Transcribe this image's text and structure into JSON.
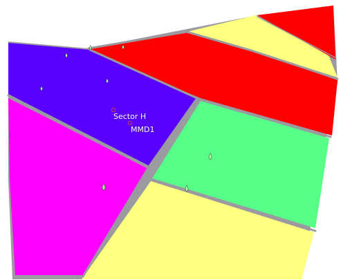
{
  "map": {
    "colors": {
      "background": "#ffffff",
      "parcel_red": "#ff0000",
      "parcel_yellow": "#ffff80",
      "parcel_blue": "#5a00ff",
      "parcel_magenta": "#ff00ff",
      "parcel_green": "#55ff88",
      "road_gray": "#9a9aa0",
      "marker_fill": "#a8ff9a",
      "point_stroke": "#c0306a"
    },
    "labels": {
      "sector": "Sector H",
      "mmd": "MMD1"
    },
    "markers": [
      {
        "kind": "drop-marker-icon",
        "color": "#a8ff9a"
      },
      {
        "kind": "drop-marker-icon",
        "color": "#a8ff9a"
      },
      {
        "kind": "drop-marker-icon",
        "color": "#a8ff9a"
      },
      {
        "kind": "drop-marker-icon",
        "color": "#a8ff9a"
      },
      {
        "kind": "drop-marker-icon",
        "color": "#a8ff9a"
      },
      {
        "kind": "drop-marker-icon",
        "color": "#a8ff9a"
      },
      {
        "kind": "drop-marker-icon",
        "color": "#a8ff9a"
      },
      {
        "kind": "drop-marker-icon",
        "color": "#a8ff9a"
      }
    ]
  }
}
